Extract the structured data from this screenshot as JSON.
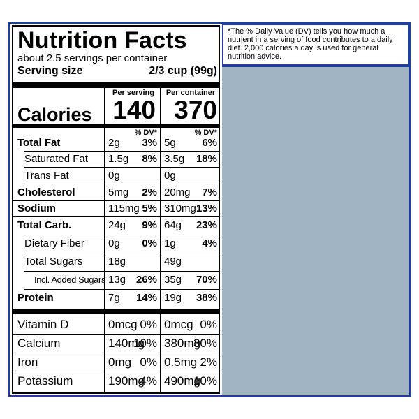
{
  "label": {
    "title": "Nutrition Facts",
    "servings_per_container": "about 2.5 servings per container",
    "serving_size_label": "Serving size",
    "serving_size_value": "2/3 cup (99g)",
    "col_per_serving": "Per serving",
    "col_per_container": "Per container",
    "calories_label": "Calories",
    "calories_serving": "140",
    "calories_container": "370",
    "dv_header": "% DV*",
    "nutrients": [
      {
        "name": "Total Fat",
        "bold": true,
        "indent": 0,
        "s_amt": "2g",
        "s_dv": "3%",
        "c_amt": "5g",
        "c_dv": "6%"
      },
      {
        "name": "Saturated Fat",
        "bold": false,
        "indent": 1,
        "s_amt": "1.5g",
        "s_dv": "8%",
        "c_amt": "3.5g",
        "c_dv": "18%"
      },
      {
        "name": "Trans Fat",
        "bold": false,
        "indent": 1,
        "s_amt": "0g",
        "s_dv": "",
        "c_amt": "0g",
        "c_dv": ""
      },
      {
        "name": "Cholesterol",
        "bold": true,
        "indent": 0,
        "s_amt": "5mg",
        "s_dv": "2%",
        "c_amt": "20mg",
        "c_dv": "7%"
      },
      {
        "name": "Sodium",
        "bold": true,
        "indent": 0,
        "s_amt": "115mg",
        "s_dv": "5%",
        "c_amt": "310mg",
        "c_dv": "13%"
      },
      {
        "name": "Total Carb.",
        "bold": true,
        "indent": 0,
        "s_amt": "24g",
        "s_dv": "9%",
        "c_amt": "64g",
        "c_dv": "23%"
      },
      {
        "name": "Dietary Fiber",
        "bold": false,
        "indent": 1,
        "s_amt": "0g",
        "s_dv": "0%",
        "c_amt": "1g",
        "c_dv": "4%"
      },
      {
        "name": "Total Sugars",
        "bold": false,
        "indent": 1,
        "s_amt": "18g",
        "s_dv": "",
        "c_amt": "49g",
        "c_dv": ""
      },
      {
        "name": "Incl. Added Sugars",
        "bold": false,
        "indent": 2,
        "s_amt": "13g",
        "s_dv": "26%",
        "c_amt": "35g",
        "c_dv": "70%"
      },
      {
        "name": "Protein",
        "bold": true,
        "indent": 0,
        "s_amt": "7g",
        "s_dv": "14%",
        "c_amt": "19g",
        "c_dv": "38%"
      }
    ],
    "vitamins": [
      {
        "name": "Vitamin D",
        "s_amt": "0mcg",
        "s_dv": "0%",
        "c_amt": "0mcg",
        "c_dv": "0%"
      },
      {
        "name": "Calcium",
        "s_amt": "140mg",
        "s_dv": "10%",
        "c_amt": "380mg",
        "c_dv": "30%"
      },
      {
        "name": "Iron",
        "s_amt": "0mg",
        "s_dv": "0%",
        "c_amt": "0.5mg",
        "c_dv": "2%"
      },
      {
        "name": "Potassium",
        "s_amt": "190mg",
        "s_dv": "4%",
        "c_amt": "490mg",
        "c_dv": "10%"
      }
    ]
  },
  "footnote": "*The % Daily Value (DV) tells you how much a nutrient in a serving of food contributes to a daily diet. 2,000 calories a day is used for general nutrition advice.",
  "colors": {
    "frame_blue": "#1f3fa0",
    "background_bluegray": "#a1b4c4"
  }
}
